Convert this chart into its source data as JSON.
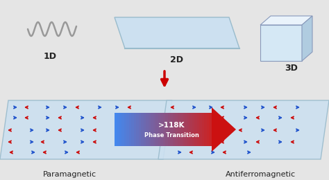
{
  "bg_color": "#e5e5e5",
  "plate_color": "#cce0f0",
  "plate_edge": "#99bbcc",
  "label_1d": "1D",
  "label_2d": "2D",
  "label_3d": "3D",
  "label_para": "Paramagnetic",
  "label_antiferro": "Antiferromagnetic",
  "arrow_label_line1": ">118K",
  "arrow_label_line2": "Phase Transition",
  "red_color": "#cc1111",
  "blue_color": "#2255cc",
  "down_arrow_color": "#cc0000",
  "label_color": "#222222",
  "wave_color": "#999999",
  "cube_front": "#d5e8f5",
  "cube_top": "#eaf3fb",
  "cube_right": "#b0cce0",
  "cube_edge": "#8899bb"
}
